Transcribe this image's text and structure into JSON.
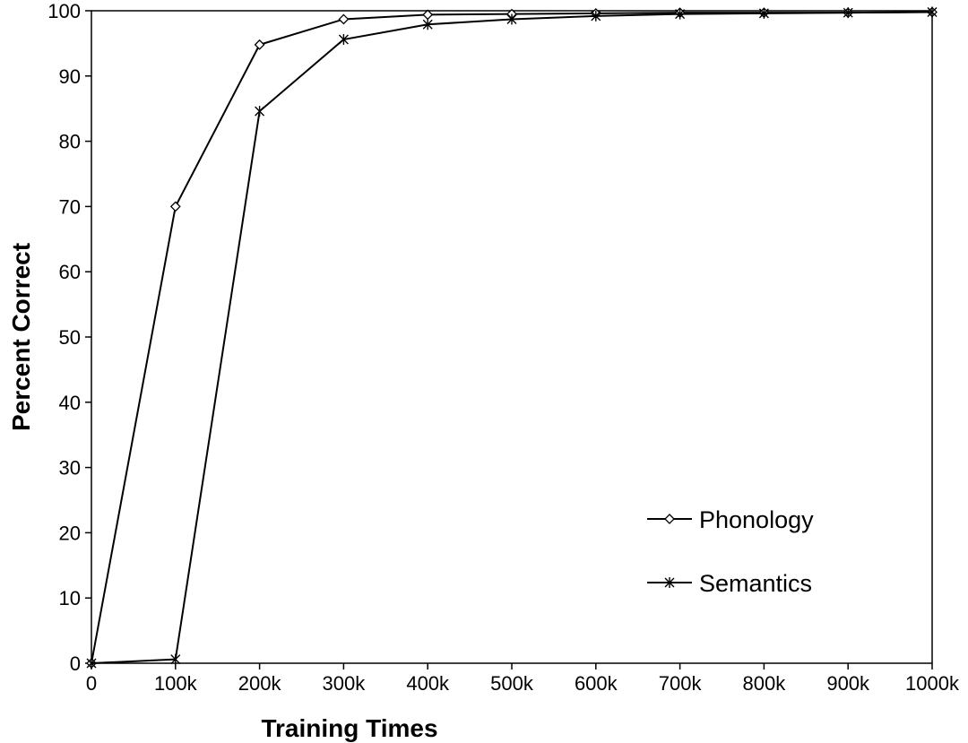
{
  "chart_data": {
    "type": "line",
    "title": "",
    "xlabel": "Training Times",
    "ylabel": "Percent Correct",
    "x": [
      0,
      100,
      200,
      300,
      400,
      500,
      600,
      700,
      800,
      900,
      1000
    ],
    "x_tick_labels": [
      "0",
      "100k",
      "200k",
      "300k",
      "400k",
      "500k",
      "600k",
      "700k",
      "800k",
      "900k",
      "1000k"
    ],
    "xlim": [
      0,
      1000
    ],
    "ylim": [
      0,
      100
    ],
    "y_ticks": [
      0,
      10,
      20,
      30,
      40,
      50,
      60,
      70,
      80,
      90,
      100
    ],
    "grid": false,
    "legend_position": "bottom-right",
    "series": [
      {
        "name": "Phonology",
        "marker": "diamond",
        "values": [
          0,
          70,
          94.8,
          98.7,
          99.4,
          99.5,
          99.6,
          99.7,
          99.7,
          99.7,
          99.8
        ]
      },
      {
        "name": "Semantics",
        "marker": "asterisk",
        "values": [
          0,
          0.6,
          84.6,
          95.6,
          97.9,
          98.7,
          99.2,
          99.5,
          99.6,
          99.7,
          99.8
        ]
      }
    ],
    "colors": {
      "line": "#000000",
      "background": "#ffffff"
    }
  }
}
